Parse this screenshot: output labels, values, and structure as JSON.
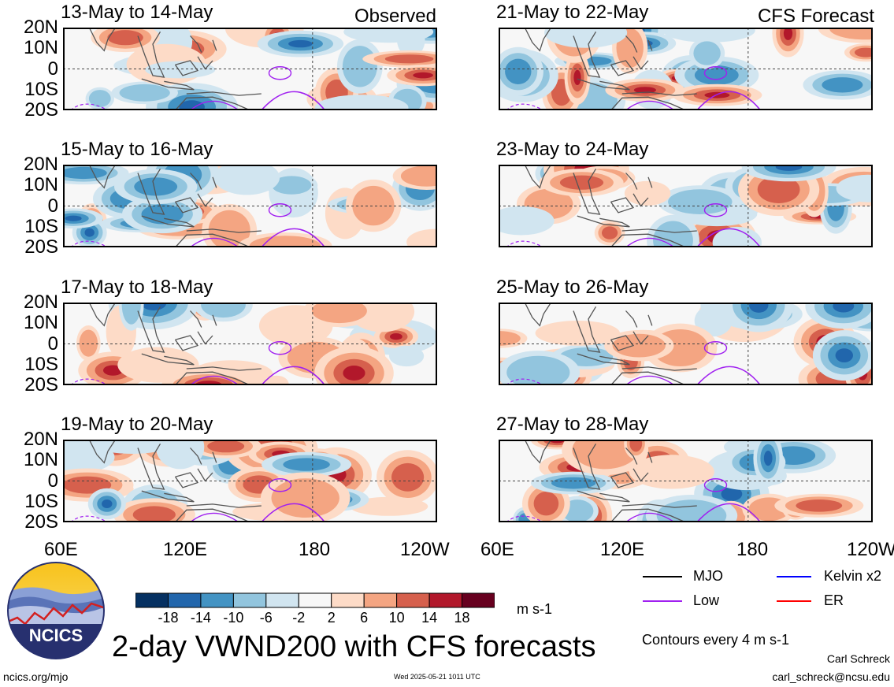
{
  "header": {
    "observed_label": "Observed",
    "forecast_label": "CFS Forecast"
  },
  "axes": {
    "y_ticks": [
      "20N",
      "10N",
      "0",
      "10S",
      "20S"
    ],
    "x_ticks": [
      "60E",
      "120E",
      "180",
      "120W"
    ]
  },
  "chart_data": {
    "type": "heatmap",
    "variable": "2-day VWND200",
    "units": "m s-1",
    "title": "2-day VWND200 with CFS forecasts",
    "x_ticks": [
      "60E",
      "120E",
      "180",
      "120W"
    ],
    "y_ticks": [
      "20N",
      "10N",
      "0",
      "10S",
      "20S"
    ],
    "colorbar": {
      "ticks": [
        -18,
        -14,
        -10,
        -6,
        -2,
        2,
        6,
        10,
        14,
        18
      ],
      "colors": [
        "#053061",
        "#2166ac",
        "#4393c3",
        "#92c5de",
        "#d1e5f0",
        "#f7f7f7",
        "#fddbc7",
        "#f4a582",
        "#d6604d",
        "#b2182b",
        "#67001f"
      ]
    },
    "panels": [
      {
        "label": "13-May to 14-May",
        "source": "Observed"
      },
      {
        "label": "15-May to 16-May",
        "source": "Observed"
      },
      {
        "label": "17-May to 18-May",
        "source": "Observed"
      },
      {
        "label": "19-May to 20-May",
        "source": "Observed"
      },
      {
        "label": "21-May to 22-May",
        "source": "CFS Forecast"
      },
      {
        "label": "23-May to 24-May",
        "source": "CFS Forecast"
      },
      {
        "label": "25-May to 26-May",
        "source": "CFS Forecast"
      },
      {
        "label": "27-May to 28-May",
        "source": "CFS Forecast"
      }
    ]
  },
  "legend": {
    "items": [
      {
        "label": "MJO",
        "color": "#000000"
      },
      {
        "label": "Kelvin x2",
        "color": "#0000ff"
      },
      {
        "label": "Low",
        "color": "#a020f0"
      },
      {
        "label": "ER",
        "color": "#ff0000"
      }
    ],
    "contour_note": "Contours every 4 m s-1"
  },
  "footer": {
    "logo_text": "NCICS",
    "title": "2-day VWND200 with CFS forecasts",
    "units": "m s-1",
    "url": "ncics.org/mjo",
    "timestamp": "Wed 2025-05-21 1011 UTC",
    "author": "Carl Schreck",
    "email": "carl_schreck@ncsu.edu"
  }
}
